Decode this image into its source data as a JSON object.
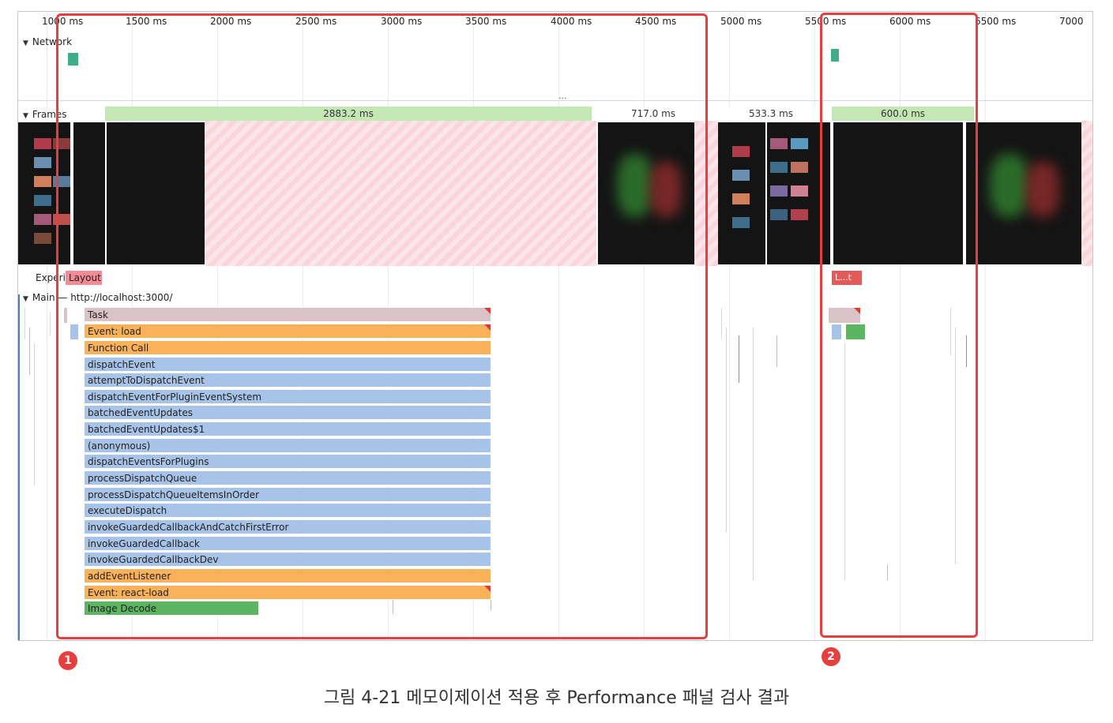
{
  "timeline": {
    "ticks": [
      "1000 ms",
      "1500 ms",
      "2000 ms",
      "2500 ms",
      "3000 ms",
      "3500 ms",
      "4000 ms",
      "4500 ms",
      "5000 ms",
      "5500 ms",
      "6000 ms",
      "6500 ms",
      "7000"
    ]
  },
  "tracks": {
    "network": "Network",
    "frames": "Frames",
    "experience": "Experience",
    "main": "Main — http://localhost:3000/",
    "more": "..."
  },
  "frames": {
    "durations": [
      "2883.2 ms",
      "717.0 ms",
      "533.3 ms",
      "600.0 ms"
    ]
  },
  "experience": {
    "chip_1": "Layout Shift",
    "chip_2": "L...t"
  },
  "flame": {
    "entries": [
      "Task",
      "Event: load",
      "Function Call",
      "dispatchEvent",
      "attemptToDispatchEvent",
      "dispatchEventForPluginEventSystem",
      "batchedEventUpdates",
      "batchedEventUpdates$1",
      "(anonymous)",
      "dispatchEventsForPlugins",
      "processDispatchQueue",
      "processDispatchQueueItemsInOrder",
      "executeDispatch",
      "invokeGuardedCallbackAndCatchFirstError",
      "invokeGuardedCallback",
      "invokeGuardedCallbackDev",
      "addEventListener",
      "Event: react-load",
      "Image Decode"
    ]
  },
  "annotations": {
    "badge_1": "1",
    "badge_2": "2"
  },
  "caption": "그림 4-21 메모이제이션 적용 후 Performance 패널 검사 결과",
  "colors": {
    "highlight": "#e53f3f",
    "scripting": "#f9b25a",
    "js_call": "#a8c3e8",
    "painting": "#5bb561",
    "frame_ok": "#c4e8b4",
    "frame_dropped": "#f9d6dc"
  }
}
